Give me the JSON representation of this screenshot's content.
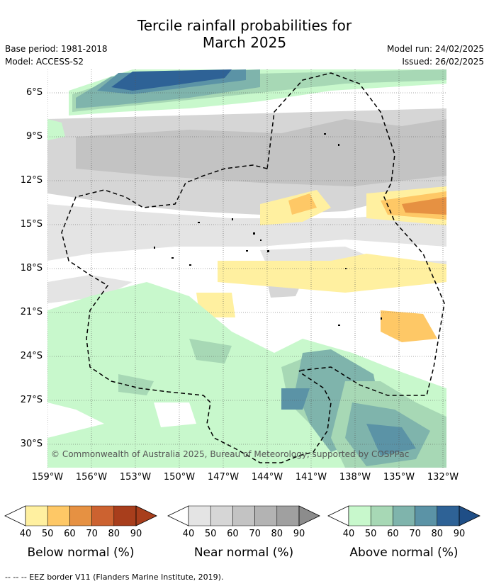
{
  "title_line1": "Tercile rainfall probabilities for",
  "title_line2": "March 2025",
  "meta": {
    "base_period": "Base period: 1981-2018",
    "model": "Model: ACCESS-S2",
    "model_run": "Model run: 24/02/2025",
    "issued": "Issued: 26/02/2025"
  },
  "map": {
    "credit": "© Commonwealth of Australia 2025, Bureau of Meteorology, supported by COSPPac",
    "lat_ticks": [
      "6°S",
      "9°S",
      "12°S",
      "15°S",
      "18°S",
      "21°S",
      "24°S",
      "27°S",
      "30°S"
    ],
    "lon_ticks": [
      "159°W",
      "156°W",
      "153°W",
      "150°W",
      "147°W",
      "144°W",
      "141°W",
      "138°W",
      "135°W",
      "132°W"
    ]
  },
  "colorbars": [
    {
      "id": "below",
      "title": "Below normal (%)",
      "colors": [
        "#fff0a0",
        "#fec866",
        "#e69142",
        "#cc6230",
        "#a83e1c"
      ],
      "ticks": [
        "40",
        "50",
        "60",
        "70",
        "80",
        "90"
      ]
    },
    {
      "id": "near",
      "title": "Near normal (%)",
      "colors": [
        "#e4e4e4",
        "#d6d6d6",
        "#c3c3c3",
        "#b3b3b3",
        "#a0a0a0"
      ],
      "ticks": [
        "40",
        "50",
        "60",
        "70",
        "80",
        "90"
      ]
    },
    {
      "id": "above",
      "title": "Above normal (%)",
      "colors": [
        "#c8f8cc",
        "#a7d8b5",
        "#7fb4ac",
        "#5b93a6",
        "#2e6296"
      ],
      "ticks": [
        "40",
        "50",
        "60",
        "70",
        "80",
        "90"
      ]
    }
  ],
  "footnote": "--  --  -- EEZ border V11 (Flanders Marine Institute, 2019)."
}
